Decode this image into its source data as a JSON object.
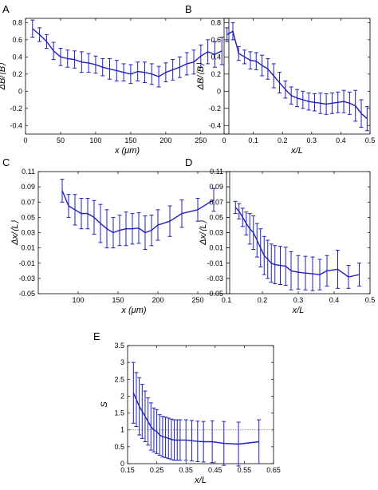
{
  "chart_data": [
    {
      "id": "A",
      "panel_label": "A",
      "type": "line",
      "xlabel": "x (μm)",
      "ylabel": "ΔB/⟨B⟩",
      "xlim": [
        0,
        290
      ],
      "ylim": [
        -0.5,
        0.85
      ],
      "xticks": [
        0,
        50,
        100,
        150,
        200,
        250
      ],
      "yticks": [
        -0.4,
        -0.2,
        0,
        0.2,
        0.4,
        0.6,
        0.8
      ],
      "ytick_labels": [
        "-0.4",
        "-0.2",
        "0",
        "0.2",
        "0.4",
        "0.6",
        "0.8"
      ],
      "series": [
        {
          "color": "#1f1fbf",
          "x": [
            10,
            20,
            30,
            40,
            50,
            60,
            70,
            80,
            90,
            100,
            110,
            120,
            130,
            140,
            150,
            160,
            170,
            180,
            190,
            200,
            210,
            220,
            230,
            240,
            250,
            260,
            270,
            280
          ],
          "y": [
            0.73,
            0.66,
            0.58,
            0.47,
            0.4,
            0.38,
            0.37,
            0.34,
            0.33,
            0.31,
            0.28,
            0.26,
            0.24,
            0.22,
            0.2,
            0.23,
            0.22,
            0.2,
            0.17,
            0.22,
            0.25,
            0.28,
            0.32,
            0.34,
            0.41,
            0.46,
            0.43,
            0.47
          ],
          "err": [
            0.1,
            0.08,
            0.08,
            0.1,
            0.1,
            0.1,
            0.1,
            0.12,
            0.11,
            0.1,
            0.1,
            0.12,
            0.12,
            0.1,
            0.11,
            0.11,
            0.12,
            0.12,
            0.12,
            0.11,
            0.12,
            0.12,
            0.13,
            0.14,
            0.13,
            0.14,
            0.15,
            0.16
          ]
        }
      ]
    },
    {
      "id": "B",
      "panel_label": "B",
      "type": "line",
      "xlabel": "x/L",
      "ylabel": "ΔB/⟨B⟩",
      "xlim": [
        0,
        0.5
      ],
      "ylim": [
        -0.5,
        0.85
      ],
      "xticks": [
        0,
        0.1,
        0.2,
        0.3,
        0.4,
        0.5
      ],
      "xtick_labels": [
        "0",
        "0.1",
        "0.2",
        "0.3",
        "0.4",
        "0.5"
      ],
      "yticks": [
        -0.4,
        -0.2,
        0,
        0.2,
        0.4,
        0.6,
        0.8
      ],
      "ytick_labels": [
        "-0.4",
        "-0.2",
        "0",
        "0.2",
        "0.4",
        "0.6",
        "0.8"
      ],
      "series": [
        {
          "color": "#1f1fbf",
          "x": [
            0.01,
            0.03,
            0.05,
            0.07,
            0.09,
            0.11,
            0.13,
            0.15,
            0.17,
            0.19,
            0.21,
            0.23,
            0.25,
            0.27,
            0.29,
            0.31,
            0.33,
            0.35,
            0.37,
            0.39,
            0.41,
            0.43,
            0.45,
            0.47,
            0.49
          ],
          "y": [
            0.66,
            0.7,
            0.44,
            0.4,
            0.36,
            0.35,
            0.3,
            0.26,
            0.18,
            0.1,
            0.02,
            -0.05,
            -0.08,
            -0.1,
            -0.12,
            -0.13,
            -0.14,
            -0.15,
            -0.14,
            -0.13,
            -0.12,
            -0.14,
            -0.17,
            -0.26,
            -0.32
          ],
          "err": [
            0.08,
            0.1,
            0.08,
            0.08,
            0.1,
            0.1,
            0.12,
            0.12,
            0.14,
            0.12,
            0.1,
            0.1,
            0.1,
            0.1,
            0.1,
            0.1,
            0.12,
            0.12,
            0.12,
            0.12,
            0.13,
            0.13,
            0.18,
            0.16,
            0.14
          ]
        }
      ]
    },
    {
      "id": "C",
      "panel_label": "C",
      "type": "line",
      "xlabel": "x (μm)",
      "ylabel": "Δx/⟨L⟩",
      "xlim": [
        50,
        290
      ],
      "ylim": [
        -0.05,
        0.11
      ],
      "xticks": [
        100,
        150,
        200,
        250
      ],
      "yticks": [
        -0.05,
        -0.03,
        -0.01,
        0.01,
        0.03,
        0.05,
        0.07,
        0.09,
        0.11
      ],
      "ytick_labels": [
        "-0.05",
        "-0.03",
        "-0.01",
        "0.01",
        "0.03",
        "0.05",
        "0.07",
        "0.09",
        "0.11"
      ],
      "series": [
        {
          "color": "#1f1fbf",
          "x": [
            80,
            88,
            96,
            104,
            112,
            120,
            128,
            136,
            144,
            152,
            160,
            168,
            176,
            184,
            192,
            200,
            215,
            230,
            250,
            270
          ],
          "y": [
            0.085,
            0.065,
            0.06,
            0.055,
            0.055,
            0.05,
            0.042,
            0.035,
            0.03,
            0.033,
            0.035,
            0.035,
            0.036,
            0.03,
            0.033,
            0.04,
            0.045,
            0.055,
            0.06,
            0.073
          ],
          "err": [
            0.015,
            0.015,
            0.02,
            0.02,
            0.02,
            0.022,
            0.025,
            0.025,
            0.02,
            0.02,
            0.022,
            0.02,
            0.02,
            0.022,
            0.02,
            0.02,
            0.02,
            0.018,
            0.015,
            0.015
          ]
        }
      ]
    },
    {
      "id": "D",
      "panel_label": "D",
      "type": "line",
      "xlabel": "x/L",
      "ylabel": "Δx/⟨L⟩",
      "xlim": [
        0.1,
        0.5
      ],
      "ylim": [
        -0.05,
        0.11
      ],
      "xticks": [
        0.1,
        0.2,
        0.3,
        0.4,
        0.5
      ],
      "xtick_labels": [
        "0.1",
        "0.2",
        "0.3",
        "0.4",
        "0.5"
      ],
      "yticks": [
        -0.05,
        -0.03,
        -0.01,
        0.01,
        0.03,
        0.05,
        0.07,
        0.09,
        0.11
      ],
      "ytick_labels": [
        "-0.05",
        "-0.03",
        "-0.01",
        "0.01",
        "0.03",
        "0.05",
        "0.07",
        "0.09",
        "0.11"
      ],
      "series": [
        {
          "color": "#1f1fbf",
          "x": [
            0.125,
            0.135,
            0.145,
            0.155,
            0.165,
            0.175,
            0.185,
            0.195,
            0.205,
            0.215,
            0.225,
            0.235,
            0.25,
            0.265,
            0.28,
            0.3,
            0.32,
            0.34,
            0.36,
            0.38,
            0.41,
            0.44,
            0.47
          ],
          "y": [
            0.063,
            0.058,
            0.05,
            0.042,
            0.035,
            0.03,
            0.02,
            0.01,
            0.0,
            -0.005,
            -0.01,
            -0.012,
            -0.013,
            -0.014,
            -0.02,
            -0.022,
            -0.023,
            -0.024,
            -0.025,
            -0.02,
            -0.018,
            -0.028,
            -0.025
          ],
          "err": [
            0.008,
            0.01,
            0.012,
            0.015,
            0.02,
            0.022,
            0.022,
            0.025,
            0.025,
            0.025,
            0.025,
            0.025,
            0.025,
            0.025,
            0.025,
            0.022,
            0.022,
            0.022,
            0.02,
            0.02,
            0.025,
            0.015,
            0.015
          ]
        }
      ]
    },
    {
      "id": "E",
      "panel_label": "E",
      "type": "line",
      "xlabel": "x/L",
      "ylabel": "S",
      "xlim": [
        0.15,
        0.65
      ],
      "ylim": [
        0,
        3.5
      ],
      "xticks": [
        0.15,
        0.25,
        0.35,
        0.45,
        0.55,
        0.65
      ],
      "xtick_labels": [
        "0.15",
        "0.25",
        "0.35",
        "0.45",
        "0.55",
        "0.65"
      ],
      "yticks": [
        0,
        0.5,
        1,
        1.5,
        2,
        2.5,
        3,
        3.5
      ],
      "ytick_labels": [
        "0",
        "0.5",
        "1",
        "1.5",
        "2",
        "2.5",
        "3",
        "3.5"
      ],
      "reference_line": {
        "y": 1,
        "style": "dotted"
      },
      "series": [
        {
          "color": "#1f1fbf",
          "x": [
            0.17,
            0.18,
            0.19,
            0.2,
            0.21,
            0.22,
            0.23,
            0.24,
            0.25,
            0.26,
            0.27,
            0.28,
            0.29,
            0.3,
            0.31,
            0.32,
            0.33,
            0.35,
            0.37,
            0.39,
            0.41,
            0.44,
            0.48,
            0.53,
            0.6
          ],
          "y": [
            2.1,
            1.9,
            1.7,
            1.55,
            1.4,
            1.25,
            1.1,
            1.0,
            0.95,
            0.85,
            0.8,
            0.78,
            0.75,
            0.72,
            0.7,
            0.7,
            0.7,
            0.7,
            0.68,
            0.66,
            0.65,
            0.65,
            0.6,
            0.58,
            0.65
          ],
          "err": [
            0.9,
            0.8,
            0.85,
            0.8,
            0.75,
            0.7,
            0.7,
            0.65,
            0.65,
            0.6,
            0.6,
            0.6,
            0.6,
            0.6,
            0.6,
            0.6,
            0.6,
            0.6,
            0.6,
            0.6,
            0.6,
            0.62,
            0.65,
            0.65,
            0.65
          ]
        }
      ]
    }
  ]
}
